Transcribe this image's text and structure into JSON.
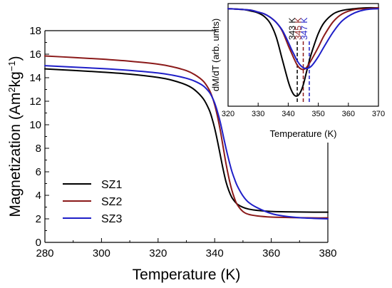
{
  "chart_data": [
    {
      "type": "line",
      "xlabel": "Temperature (K)",
      "ylabel": "Magnetization (Am²kg⁻¹)",
      "ylabel_parts": {
        "pre": "Magnetization (Am",
        "sup1": "2",
        "mid": "kg",
        "sup2": "−1",
        "post": ")"
      },
      "xlim": [
        280,
        380
      ],
      "ylim": [
        0,
        18
      ],
      "xticks": [
        280,
        300,
        320,
        340,
        360,
        380
      ],
      "yticks": [
        0,
        2,
        4,
        6,
        8,
        10,
        12,
        14,
        16,
        18
      ],
      "legend_position": "bottom-left",
      "series": [
        {
          "name": "SZ1",
          "color": "#000000",
          "x": [
            280,
            290,
            300,
            310,
            320,
            325,
            330,
            333,
            336,
            338,
            339,
            340,
            341,
            342,
            343,
            344,
            345,
            346,
            347,
            348,
            350,
            352,
            355,
            360,
            365,
            370,
            375,
            380
          ],
          "y": [
            14.75,
            14.62,
            14.48,
            14.3,
            14.02,
            13.78,
            13.38,
            12.95,
            12.2,
            11.3,
            10.6,
            9.7,
            8.6,
            7.4,
            6.2,
            5.15,
            4.4,
            3.85,
            3.5,
            3.25,
            2.98,
            2.83,
            2.72,
            2.63,
            2.6,
            2.58,
            2.57,
            2.57
          ]
        },
        {
          "name": "SZ2",
          "color": "#8b1a1a",
          "x": [
            280,
            290,
            300,
            310,
            320,
            325,
            330,
            333,
            336,
            338,
            339,
            340,
            341,
            342,
            343,
            344,
            345,
            346,
            347,
            348,
            350,
            352,
            355,
            360,
            365,
            370,
            375,
            380
          ],
          "y": [
            15.85,
            15.72,
            15.58,
            15.4,
            15.15,
            14.93,
            14.6,
            14.25,
            13.7,
            13.0,
            12.45,
            11.7,
            10.7,
            9.5,
            8.1,
            6.7,
            5.5,
            4.5,
            3.75,
            3.2,
            2.62,
            2.38,
            2.25,
            2.15,
            2.12,
            2.1,
            2.08,
            2.08
          ]
        },
        {
          "name": "SZ3",
          "color": "#1f1fc8",
          "x": [
            280,
            290,
            300,
            310,
            320,
            325,
            330,
            333,
            336,
            338,
            339,
            340,
            341,
            342,
            343,
            344,
            345,
            346,
            347,
            348,
            350,
            352,
            355,
            360,
            365,
            370,
            375,
            380
          ],
          "y": [
            15.02,
            14.9,
            14.78,
            14.62,
            14.4,
            14.22,
            13.95,
            13.7,
            13.3,
            12.8,
            12.4,
            11.85,
            11.1,
            10.2,
            9.1,
            8.0,
            7.0,
            6.1,
            5.4,
            4.8,
            3.95,
            3.4,
            2.95,
            2.45,
            2.22,
            2.1,
            2.04,
            2.0
          ]
        }
      ]
    },
    {
      "type": "line",
      "xlabel": "Temperature (K)",
      "ylabel": "dM/dT (arb. units)",
      "xlim": [
        320,
        370
      ],
      "ylim": [
        -1.15,
        0.05
      ],
      "xticks": [
        320,
        330,
        340,
        350,
        360,
        370
      ],
      "annotations": [
        {
          "text": "343 K",
          "x": 343,
          "color": "#000000"
        },
        {
          "text": "345 K",
          "x": 345,
          "color": "#8b1a1a"
        },
        {
          "text": "347 K",
          "x": 347,
          "color": "#1f1fc8"
        }
      ],
      "series": [
        {
          "name": "SZ1",
          "color": "#000000",
          "x": [
            320,
            325,
            328,
            330,
            332,
            334,
            336,
            338,
            340,
            341,
            342,
            343,
            344,
            345,
            346,
            347,
            348,
            350,
            352,
            355,
            358,
            362,
            366,
            370
          ],
          "y": [
            -0.01,
            -0.02,
            -0.04,
            -0.06,
            -0.1,
            -0.18,
            -0.34,
            -0.6,
            -0.86,
            -0.96,
            -1.02,
            -1.03,
            -0.99,
            -0.9,
            -0.76,
            -0.62,
            -0.5,
            -0.3,
            -0.17,
            -0.07,
            -0.03,
            -0.01,
            0.0,
            0.0
          ]
        },
        {
          "name": "SZ2",
          "color": "#8b1a1a",
          "x": [
            320,
            325,
            328,
            330,
            332,
            334,
            336,
            338,
            340,
            341,
            342,
            343,
            344,
            345,
            346,
            347,
            348,
            350,
            352,
            355,
            358,
            362,
            366,
            370
          ],
          "y": [
            -0.01,
            -0.02,
            -0.03,
            -0.05,
            -0.07,
            -0.11,
            -0.17,
            -0.27,
            -0.44,
            -0.52,
            -0.6,
            -0.67,
            -0.71,
            -0.72,
            -0.7,
            -0.65,
            -0.59,
            -0.46,
            -0.32,
            -0.16,
            -0.07,
            -0.02,
            -0.01,
            0.0
          ]
        },
        {
          "name": "SZ3",
          "color": "#1f1fc8",
          "x": [
            320,
            325,
            328,
            330,
            332,
            334,
            336,
            338,
            340,
            341,
            342,
            343,
            344,
            345,
            346,
            347,
            348,
            350,
            352,
            355,
            358,
            362,
            366,
            370
          ],
          "y": [
            -0.01,
            -0.02,
            -0.03,
            -0.05,
            -0.07,
            -0.11,
            -0.17,
            -0.26,
            -0.4,
            -0.48,
            -0.55,
            -0.62,
            -0.67,
            -0.7,
            -0.71,
            -0.7,
            -0.67,
            -0.57,
            -0.45,
            -0.28,
            -0.15,
            -0.06,
            -0.02,
            -0.01
          ]
        }
      ]
    }
  ]
}
